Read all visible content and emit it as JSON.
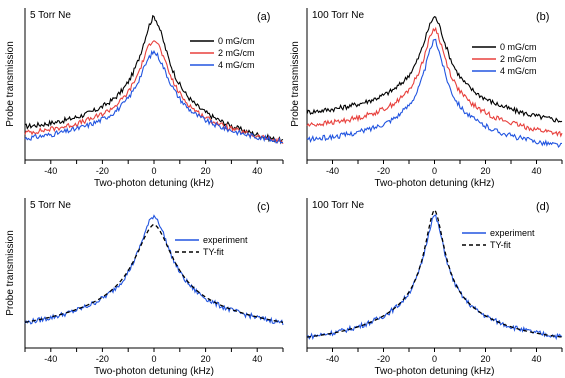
{
  "chart_data": [
    {
      "id": "a",
      "type": "line",
      "panel_label": "(a)",
      "title": "5 Torr Ne",
      "xlabel": "Two-photon detuning (kHz)",
      "ylabel": "Probe transmission",
      "xlim": [
        -50,
        50
      ],
      "ylim": [
        0,
        1
      ],
      "xticks": [
        -40,
        -20,
        0,
        20,
        40
      ],
      "legend_position": "top-right",
      "series": [
        {
          "name": "0 mG/cm",
          "color": "#000000",
          "peak": 0.98,
          "base": 0.1,
          "width": 6.5,
          "tail": 0.05
        },
        {
          "name": "2 mG/cm",
          "color": "#e8413d",
          "peak": 0.83,
          "base": 0.08,
          "width": 7.0,
          "tail": 0.03
        },
        {
          "name": "4 mG/cm",
          "color": "#2255e0",
          "peak": 0.74,
          "base": 0.06,
          "width": 7.5,
          "tail": 0.01
        }
      ]
    },
    {
      "id": "b",
      "type": "line",
      "panel_label": "(b)",
      "title": "100 Torr Ne",
      "xlabel": "Two-photon detuning (kHz)",
      "ylabel": "Probe transmission",
      "xlim": [
        -50,
        50
      ],
      "ylim": [
        0,
        1
      ],
      "xticks": [
        -40,
        -20,
        0,
        20,
        40
      ],
      "legend_position": "top-right",
      "series": [
        {
          "name": "0 mG/cm",
          "color": "#000000",
          "peak": 0.98,
          "base": 0.24,
          "width": 6.0,
          "tail": 0.03
        },
        {
          "name": "2 mG/cm",
          "color": "#e8413d",
          "peak": 0.9,
          "base": 0.16,
          "width": 5.5,
          "tail": 0.03
        },
        {
          "name": "4 mG/cm",
          "color": "#2255e0",
          "peak": 0.82,
          "base": 0.08,
          "width": 5.0,
          "tail": 0.02
        }
      ]
    },
    {
      "id": "c",
      "type": "line",
      "panel_label": "(c)",
      "title": "5 Torr Ne",
      "xlabel": "Two-photon detuning (kHz)",
      "ylabel": "Probe transmission",
      "xlim": [
        -50,
        50
      ],
      "ylim": [
        0,
        1
      ],
      "xticks": [
        -40,
        -20,
        0,
        20,
        40
      ],
      "legend_position": "right",
      "series": [
        {
          "name": "experiment",
          "color": "#2255e0",
          "style": "solid",
          "peak": 0.92,
          "base": 0.08,
          "width": 7.5
        },
        {
          "name": "TY-fit",
          "color": "#000000",
          "style": "dashed",
          "peak": 0.86,
          "base": 0.06,
          "width": 9.0
        }
      ]
    },
    {
      "id": "d",
      "type": "line",
      "panel_label": "(d)",
      "title": "100 Torr Ne",
      "xlabel": "Two-photon detuning (kHz)",
      "ylabel": "",
      "xlim": [
        -50,
        50
      ],
      "ylim": [
        0,
        1
      ],
      "xticks": [
        -40,
        -20,
        0,
        20,
        40
      ],
      "legend_position": "right",
      "series": [
        {
          "name": "experiment",
          "color": "#2255e0",
          "style": "solid",
          "peak": 0.92,
          "base": 0.03,
          "width": 5.0
        },
        {
          "name": "TY-fit",
          "color": "#000000",
          "style": "dashed",
          "peak": 0.96,
          "base": 0.03,
          "width": 4.8
        }
      ]
    }
  ]
}
